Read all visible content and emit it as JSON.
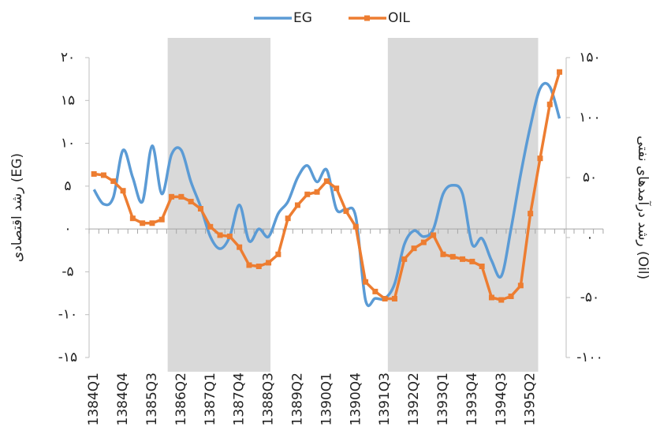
{
  "chart_data": {
    "type": "line",
    "y_label": "رشد اقتصادی (EG)",
    "y2_label": "رشد درآمدهای نفتی (Oil)",
    "categories": [
      "1384Q1",
      null,
      null,
      "1384Q4",
      null,
      null,
      "1385Q3",
      null,
      null,
      "1386Q2",
      null,
      null,
      "1387Q1",
      null,
      null,
      "1387Q4",
      null,
      null,
      "1388Q3",
      null,
      null,
      "1389Q2",
      null,
      null,
      "1390Q1",
      null,
      null,
      "1390Q4",
      null,
      null,
      "1391Q3",
      null,
      null,
      "1392Q2",
      null,
      null,
      "1393Q1",
      null,
      null,
      "1393Q4",
      null,
      null,
      "1394Q3",
      null,
      null,
      "1395Q2",
      null,
      null,
      null,
      null,
      null,
      null,
      null
    ],
    "series": [
      {
        "name": "EG",
        "color": "#5b9bd5",
        "smooth": true,
        "axis": "y",
        "values": [
          4.6,
          2.9,
          3.7,
          9.2,
          6.0,
          3.2,
          9.7,
          4.1,
          8.7,
          9.2,
          5.5,
          2.6,
          -0.9,
          -2.3,
          -0.9,
          2.8,
          -1.4,
          0,
          -0.9,
          1.8,
          3.2,
          6.0,
          7.4,
          5.5,
          6.9,
          2.3,
          2.3,
          1.4,
          -8.3,
          -8.1,
          -8.1,
          -6.4,
          -1.8,
          -0.2,
          -0.9,
          0,
          4.1,
          5.1,
          4.1,
          -1.8,
          -1.1,
          -3.7,
          -5.5,
          0,
          6.4,
          12,
          16.4,
          16.6,
          12.9,
          null,
          null,
          null,
          null
        ]
      },
      {
        "name": "OIL",
        "color": "#ed7d31",
        "smooth": false,
        "marker": true,
        "axis": "y2",
        "values": [
          53,
          52,
          47,
          39,
          16,
          12,
          12,
          15,
          34,
          34,
          30,
          24,
          9,
          2,
          1,
          -8,
          -23,
          -24,
          -21,
          -14,
          16,
          27,
          36,
          38,
          47,
          41,
          22,
          9,
          -37,
          -45,
          -51,
          -51,
          -18,
          -9,
          -4,
          2,
          -14,
          -16,
          -18,
          -20,
          -24,
          -50,
          -52,
          -49,
          -40,
          20,
          66,
          111,
          138,
          null,
          null,
          null,
          null
        ]
      }
    ],
    "ylim": [
      -15,
      20
    ],
    "yticks": [
      {
        "value": -15,
        "label": "-۱۵"
      },
      {
        "value": -10,
        "label": "-۱۰"
      },
      {
        "value": -5,
        "label": "-۵"
      },
      {
        "value": 0,
        "label": "۰"
      },
      {
        "value": 5,
        "label": "۵"
      },
      {
        "value": 10,
        "label": "۱۰"
      },
      {
        "value": 15,
        "label": "۱۵"
      },
      {
        "value": 20,
        "label": "۲۰"
      }
    ],
    "y2lim": [
      -100,
      150
    ],
    "y2ticks": [
      {
        "value": -100,
        "label": "-۱۰۰"
      },
      {
        "value": -50,
        "label": "-۵۰"
      },
      {
        "value": 0,
        "label": "۰"
      },
      {
        "value": 50,
        "label": "۵۰"
      },
      {
        "value": 100,
        "label": "۱۰۰"
      },
      {
        "value": 150,
        "label": "۱۵۰"
      }
    ],
    "shaded": [
      {
        "from": 7.6,
        "to": 18.2,
        "color": "#d9d9d9"
      },
      {
        "from": 30.3,
        "to": 45.8,
        "color": "#d9d9d9"
      }
    ],
    "legend": "top"
  }
}
